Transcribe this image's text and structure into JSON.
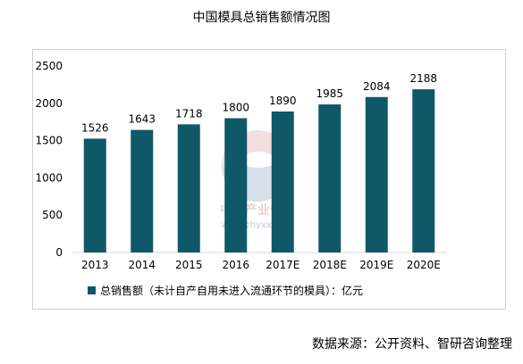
{
  "title": "中国模具总销售额情况图",
  "source": "数据来源：公开资料、智研咨询整理",
  "watermark": {
    "brand": "中国产业信息",
    "url": "www.chyxx.com"
  },
  "colors": {
    "bar": "#0f5868",
    "axis": "#d9d9d9",
    "text": "#000000"
  },
  "chart_data": {
    "type": "bar",
    "categories": [
      "2013",
      "2014",
      "2015",
      "2016",
      "2017E",
      "2018E",
      "2019E",
      "2020E"
    ],
    "series": [
      {
        "name": "总销售额（未计自产自用未进入流通环节的模具）：亿元",
        "values": [
          1526,
          1643,
          1718,
          1800,
          1890,
          1985,
          2084,
          2188
        ]
      }
    ],
    "y_ticks": [
      "0",
      "500",
      "1000",
      "1500",
      "2000",
      "2500"
    ],
    "ylim": [
      0,
      2500
    ],
    "grid": false,
    "legend_position": "bottom",
    "data_labels": true
  }
}
